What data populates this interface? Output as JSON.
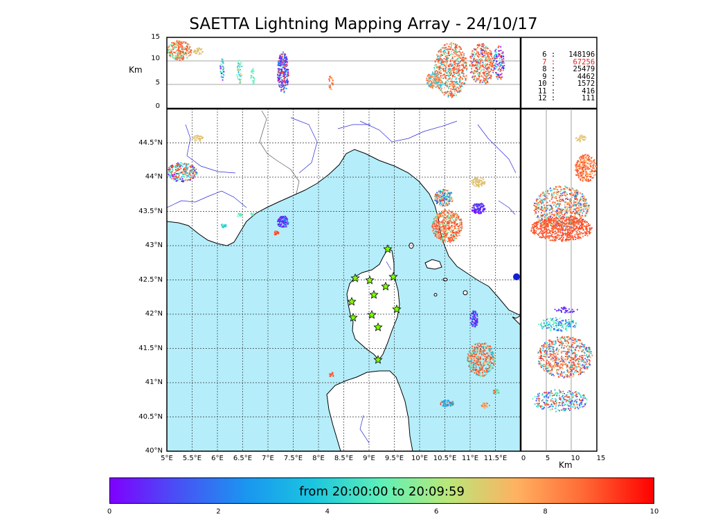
{
  "title": "SAETTA Lightning Mapping Array - 24/10/17",
  "top_panel": {
    "ylabel": "Km",
    "y_ticks": [
      "15",
      "10",
      "5",
      "0"
    ]
  },
  "right_panel": {
    "xlabel": "Km",
    "x_ticks": [
      "0",
      "5",
      "10",
      "15"
    ]
  },
  "map": {
    "lat_ticks": [
      "44.5°N",
      "44°N",
      "43.5°N",
      "43°N",
      "42.5°N",
      "42°N",
      "41.5°N",
      "41°N",
      "40.5°N",
      "40°N"
    ],
    "lon_ticks": [
      "5°E",
      "5.5°E",
      "6°E",
      "6.5°E",
      "7°E",
      "7.5°E",
      "8°E",
      "8.5°E",
      "9°E",
      "9.5°E",
      "10°E",
      "10.5°E",
      "11°E",
      "11.5°E"
    ],
    "lon_range": [
      5,
      12
    ],
    "lat_range": [
      40,
      45
    ],
    "sea_color": "#b5eefa",
    "land_color": "#ffffff",
    "stations_color": "#7fff00",
    "station_icon": "star-icon"
  },
  "altitude_counts": [
    {
      "alt": "6",
      "count": "148196",
      "highlight": false
    },
    {
      "alt": "7",
      "count": "67256",
      "highlight": true
    },
    {
      "alt": "8",
      "count": "25479",
      "highlight": false
    },
    {
      "alt": "9",
      "count": "4462",
      "highlight": false
    },
    {
      "alt": "10",
      "count": "1572",
      "highlight": false
    },
    {
      "alt": "11",
      "count": "416",
      "highlight": false
    },
    {
      "alt": "12",
      "count": "111",
      "highlight": false
    }
  ],
  "colorbar": {
    "label": "from 20:00:00 to 20:09:59",
    "ticks": [
      "0",
      "2",
      "4",
      "6",
      "8",
      "10"
    ],
    "colormap": "rainbow"
  }
}
